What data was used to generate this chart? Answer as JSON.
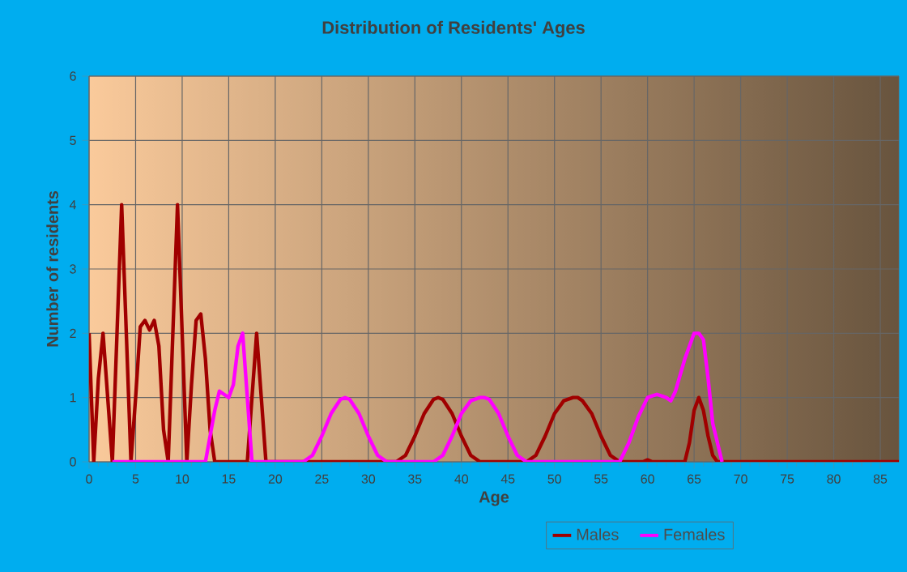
{
  "chart_data": {
    "type": "line",
    "title": "Distribution of Residents' Ages",
    "xlabel": "Age",
    "ylabel": "Number of residents",
    "xlim": [
      0,
      87
    ],
    "ylim": [
      0,
      6
    ],
    "xticks": [
      0,
      5,
      10,
      15,
      20,
      25,
      30,
      35,
      40,
      45,
      50,
      55,
      60,
      65,
      70,
      75,
      80,
      85
    ],
    "yticks": [
      0,
      1,
      2,
      3,
      4,
      5,
      6
    ],
    "grid": true,
    "legend": "bottom",
    "marker": "none",
    "line_style": "solid",
    "series": [
      {
        "name": "Males",
        "color": "#a00000",
        "x": [
          0,
          0.5,
          1,
          1.5,
          2,
          2.5,
          3,
          3.5,
          4,
          4.5,
          5,
          5.5,
          6,
          6.5,
          7,
          7.5,
          8,
          8.5,
          9,
          9.5,
          10,
          10.5,
          11,
          11.5,
          12,
          12.5,
          13,
          13.5,
          17,
          17.5,
          18,
          18.5,
          19,
          33,
          34,
          35,
          36,
          37,
          37.5,
          38,
          39,
          40,
          41,
          42,
          47,
          48,
          49,
          50,
          51,
          52,
          52.5,
          53,
          54,
          55,
          56,
          57,
          59.5,
          60,
          60.5,
          64,
          64.5,
          65,
          65.5,
          66,
          66.5,
          67,
          67.5,
          87
        ],
        "values": [
          2,
          0,
          1.3,
          2,
          1,
          0,
          2,
          4,
          2,
          0,
          1,
          2.1,
          2.2,
          2.05,
          2.2,
          1.8,
          0.5,
          0,
          2,
          4,
          2,
          0,
          1.2,
          2.2,
          2.3,
          1.6,
          0.5,
          0,
          0,
          1,
          2,
          1,
          0,
          0,
          0.1,
          0.4,
          0.75,
          0.97,
          1,
          0.97,
          0.75,
          0.4,
          0.1,
          0,
          0,
          0.1,
          0.4,
          0.75,
          0.95,
          1,
          1,
          0.95,
          0.75,
          0.4,
          0.1,
          0,
          0,
          0.03,
          0,
          0,
          0.3,
          0.8,
          1,
          0.8,
          0.4,
          0.1,
          0,
          0
        ]
      },
      {
        "name": "Females",
        "color": "#ff00ff",
        "x": [
          2.5,
          12.5,
          13.5,
          14,
          14.5,
          15,
          15.5,
          16,
          16.5,
          17,
          17.5,
          23,
          24,
          25,
          26,
          27,
          27.5,
          28,
          29,
          30,
          31,
          32,
          37,
          38,
          39,
          40,
          41,
          42,
          42.5,
          43,
          44,
          45,
          46,
          47,
          57,
          58,
          59,
          60,
          61,
          62,
          62.5,
          63,
          64,
          65,
          65.5,
          66,
          66.5,
          67,
          68
        ],
        "values": [
          0,
          0,
          0.8,
          1.1,
          1.05,
          1,
          1.2,
          1.8,
          2,
          1,
          0,
          0,
          0.1,
          0.4,
          0.75,
          0.97,
          1,
          0.97,
          0.75,
          0.4,
          0.1,
          0,
          0,
          0.1,
          0.4,
          0.75,
          0.95,
          1,
          1,
          0.97,
          0.75,
          0.4,
          0.1,
          0,
          0,
          0.3,
          0.7,
          1,
          1.05,
          1,
          0.95,
          1.1,
          1.6,
          2,
          2,
          1.9,
          1.3,
          0.6,
          0
        ]
      }
    ]
  }
}
